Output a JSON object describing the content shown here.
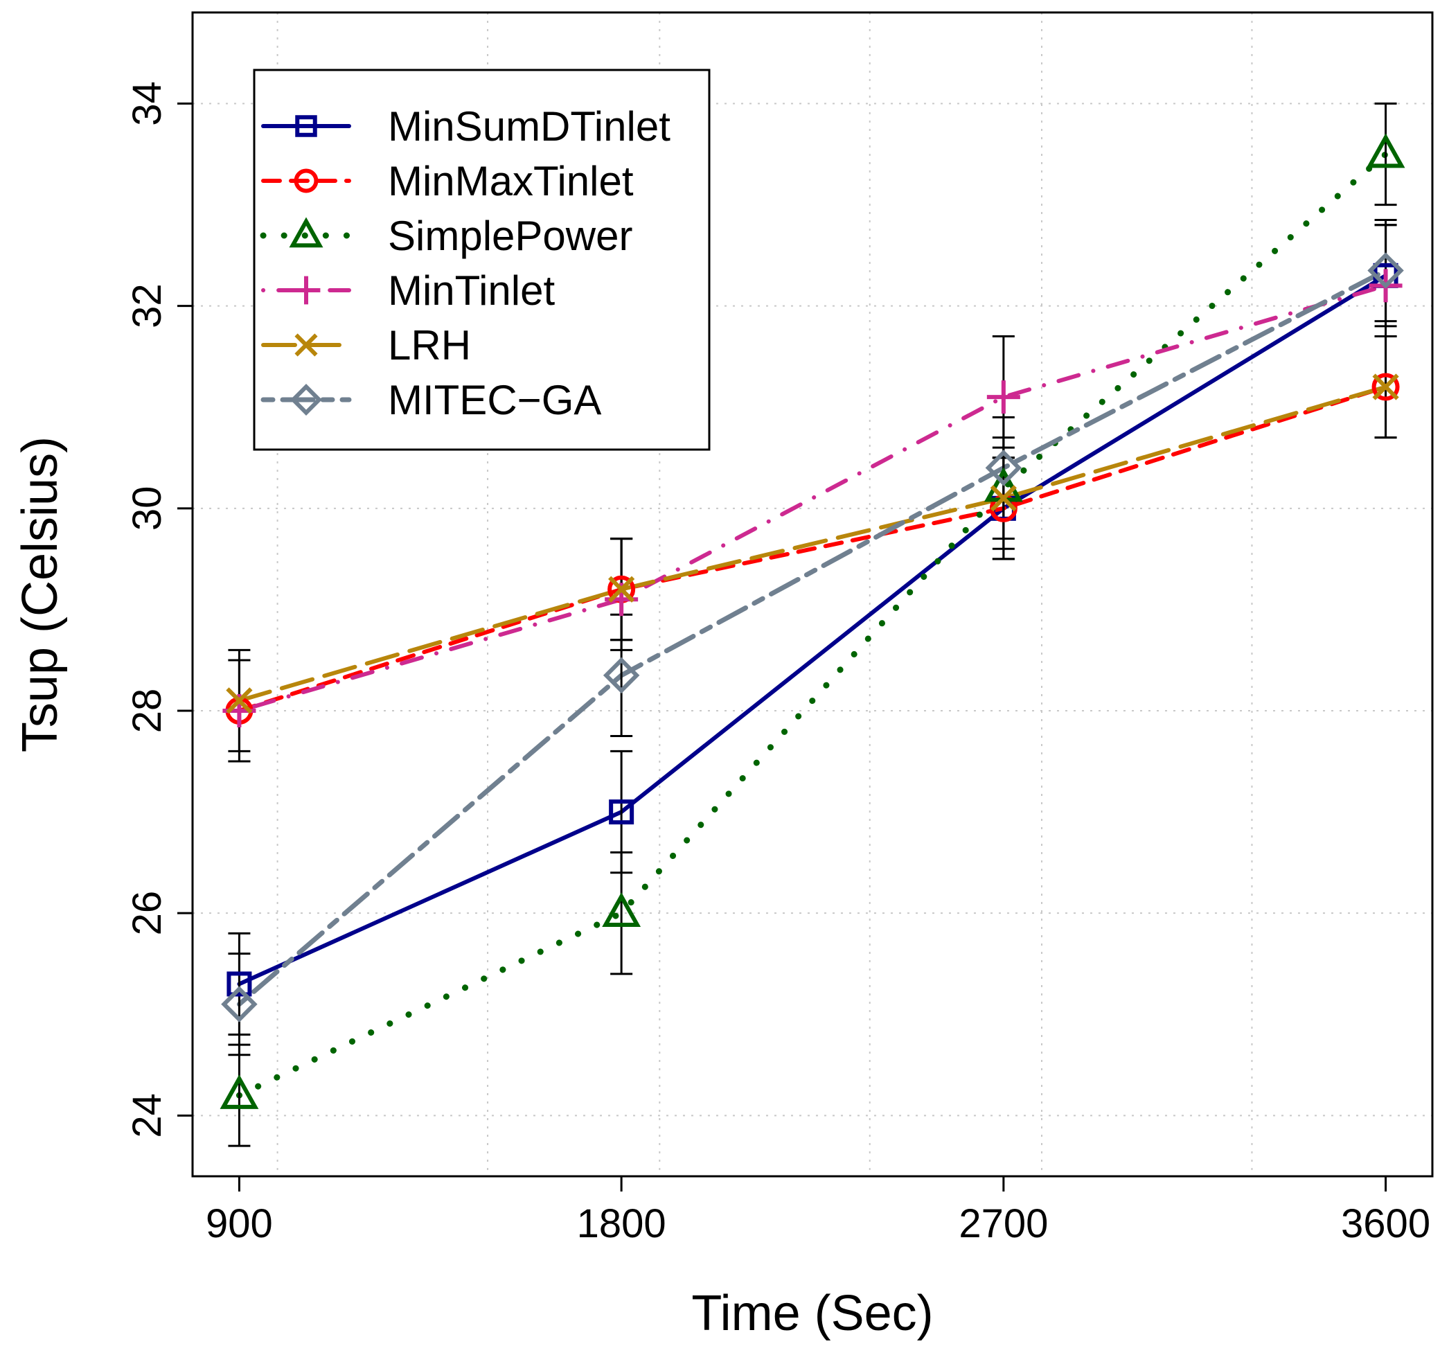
{
  "chart_data": {
    "type": "line",
    "title": "",
    "xlabel": "Time (Sec)",
    "ylabel": "Tsup (Celsius)",
    "x": [
      900,
      1800,
      2700,
      3600
    ],
    "x_tick_labels": [
      "900",
      "1800",
      "2700",
      "3600"
    ],
    "y_ticks": [
      24,
      26,
      28,
      30,
      32,
      34
    ],
    "y_tick_labels": [
      "24",
      "26",
      "28",
      "30",
      "32",
      "34"
    ],
    "xlim": [
      790,
      3710
    ],
    "ylim": [
      23.4,
      34.9
    ],
    "grid": true,
    "legend_position": "top-left",
    "series": [
      {
        "name": "MinSumDTinlet",
        "color": "#00008B",
        "marker": "square",
        "line": "solid",
        "values": [
          25.3,
          27.0,
          30.0,
          32.3
        ],
        "err_low": [
          24.8,
          26.4,
          29.5,
          31.8
        ],
        "err_high": [
          25.8,
          27.6,
          30.5,
          32.8
        ]
      },
      {
        "name": "MinMaxTinlet",
        "color": "#FF0000",
        "marker": "circle",
        "line": "dashed",
        "values": [
          28.0,
          29.2,
          30.0,
          31.2
        ],
        "err_low": [
          27.5,
          28.7,
          29.5,
          30.7
        ],
        "err_high": [
          28.5,
          29.7,
          30.5,
          31.7
        ]
      },
      {
        "name": "SimplePower",
        "color": "#006400",
        "marker": "triangle",
        "line": "dotted",
        "values": [
          24.2,
          26.0,
          30.2,
          33.5
        ],
        "err_low": [
          23.7,
          25.4,
          29.7,
          33.0
        ],
        "err_high": [
          24.7,
          26.6,
          30.7,
          34.0
        ]
      },
      {
        "name": "MinTinlet",
        "color": "#CD2990",
        "marker": "plus",
        "line": "dotdash",
        "values": [
          28.0,
          29.1,
          31.1,
          32.2
        ],
        "err_low": [
          27.5,
          28.6,
          30.5,
          31.7
        ],
        "err_high": [
          28.5,
          29.7,
          31.7,
          32.8
        ]
      },
      {
        "name": "LRH",
        "color": "#B8860B",
        "marker": "cross",
        "line": "longdash",
        "values": [
          28.1,
          29.2,
          30.1,
          31.2
        ],
        "err_low": [
          27.6,
          28.7,
          29.6,
          30.7
        ],
        "err_high": [
          28.6,
          29.7,
          30.6,
          31.7
        ]
      },
      {
        "name": "MITEC−GA",
        "color": "#708090",
        "marker": "diamond",
        "line": "twodash",
        "values": [
          25.1,
          28.35,
          30.4,
          32.35
        ],
        "err_low": [
          24.6,
          27.75,
          29.9,
          31.85
        ],
        "err_high": [
          25.6,
          28.95,
          30.9,
          32.85
        ]
      }
    ]
  }
}
